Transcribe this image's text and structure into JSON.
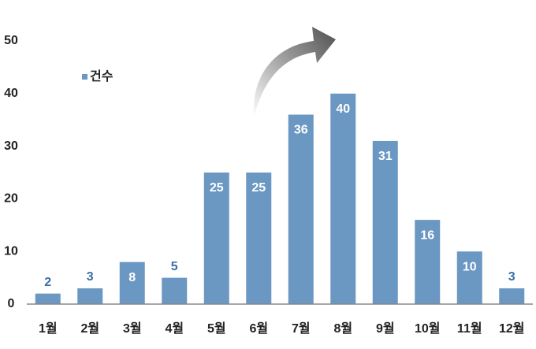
{
  "chart_data": {
    "type": "bar",
    "categories": [
      "1월",
      "2월",
      "3월",
      "4월",
      "5월",
      "6월",
      "7월",
      "8월",
      "9월",
      "10월",
      "11월",
      "12월"
    ],
    "series": [
      {
        "name": "건수",
        "color": "#6b97c3",
        "values": [
          2,
          3,
          8,
          5,
          25,
          25,
          36,
          40,
          31,
          16,
          10,
          3
        ]
      }
    ],
    "ylim": [
      0,
      50
    ],
    "yticks": [
      0,
      10,
      20,
      30,
      40,
      50
    ],
    "grid": false,
    "legend": "upper left"
  }
}
